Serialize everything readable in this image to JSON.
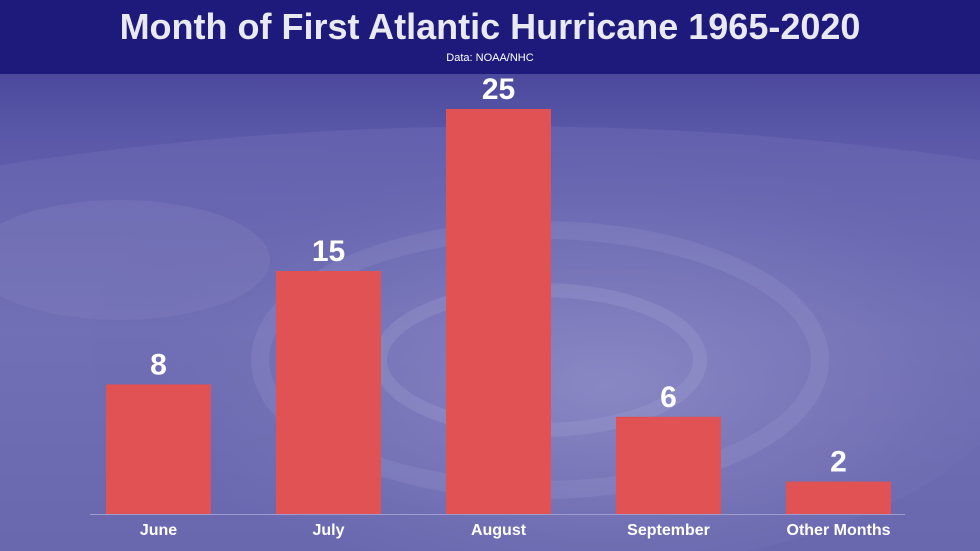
{
  "header": {
    "title": "Month of First Atlantic Hurricane 1965-2020",
    "subtitle": "Data: NOAA/NHC"
  },
  "colors": {
    "bar": "#e05254",
    "header_bg": "#1d1a7c",
    "value_label": "#ffffff",
    "axis_label": "#ffffff"
  },
  "chart_data": {
    "type": "bar",
    "title": "Month of First Atlantic Hurricane 1965-2020",
    "subtitle": "Data: NOAA/NHC",
    "categories": [
      "June",
      "July",
      "August",
      "September",
      "Other Months"
    ],
    "values": [
      8,
      15,
      25,
      6,
      2
    ],
    "data_labels": [
      "8",
      "15",
      "25",
      "6",
      "2"
    ],
    "ylim": [
      0,
      25
    ],
    "grid": false,
    "legend": "none"
  }
}
